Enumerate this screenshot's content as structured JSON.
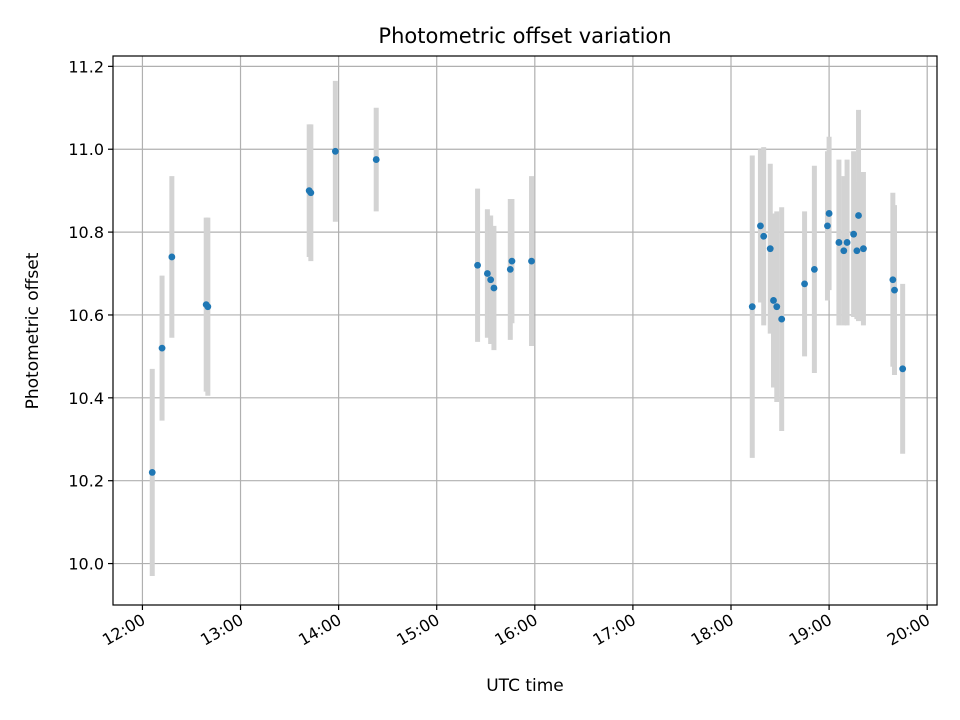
{
  "chart_data": {
    "type": "scatter",
    "title": "Photometric offset variation",
    "xlabel": "UTC time",
    "ylabel": "Photometric offset",
    "xlim": [
      "11:42",
      "20:06"
    ],
    "ylim": [
      9.9,
      11.225
    ],
    "xticks": [
      "12:00",
      "13:00",
      "14:00",
      "15:00",
      "16:00",
      "17:00",
      "18:00",
      "19:00",
      "20:00"
    ],
    "yticks": [
      10.0,
      10.2,
      10.4,
      10.6,
      10.8,
      11.0,
      11.2
    ],
    "grid": true,
    "marker_color": "#1f77b4",
    "errorbar_color": "#d3d3d3",
    "points": [
      {
        "x": "12:06",
        "y": 10.22,
        "err": 0.25
      },
      {
        "x": "12:12",
        "y": 10.52,
        "err": 0.175
      },
      {
        "x": "12:18",
        "y": 10.74,
        "err": 0.195
      },
      {
        "x": "12:39",
        "y": 10.625,
        "err": 0.21
      },
      {
        "x": "12:40",
        "y": 10.62,
        "err": 0.215
      },
      {
        "x": "13:42",
        "y": 10.9,
        "err": 0.16
      },
      {
        "x": "13:43",
        "y": 10.895,
        "err": 0.165
      },
      {
        "x": "13:58",
        "y": 10.995,
        "err": 0.17
      },
      {
        "x": "14:23",
        "y": 10.975,
        "err": 0.125
      },
      {
        "x": "15:25",
        "y": 10.72,
        "err": 0.185
      },
      {
        "x": "15:31",
        "y": 10.7,
        "err": 0.155
      },
      {
        "x": "15:33",
        "y": 10.685,
        "err": 0.155
      },
      {
        "x": "15:35",
        "y": 10.665,
        "err": 0.15
      },
      {
        "x": "15:45",
        "y": 10.71,
        "err": 0.17
      },
      {
        "x": "15:46",
        "y": 10.73,
        "err": 0.15
      },
      {
        "x": "15:58",
        "y": 10.73,
        "err": 0.205
      },
      {
        "x": "18:13",
        "y": 10.62,
        "err": 0.365
      },
      {
        "x": "18:18",
        "y": 10.815,
        "err": 0.185
      },
      {
        "x": "18:20",
        "y": 10.79,
        "err": 0.215
      },
      {
        "x": "18:24",
        "y": 10.76,
        "err": 0.205
      },
      {
        "x": "18:26",
        "y": 10.635,
        "err": 0.21
      },
      {
        "x": "18:28",
        "y": 10.62,
        "err": 0.23
      },
      {
        "x": "18:31",
        "y": 10.59,
        "err": 0.27
      },
      {
        "x": "18:45",
        "y": 10.675,
        "err": 0.175
      },
      {
        "x": "18:51",
        "y": 10.71,
        "err": 0.25
      },
      {
        "x": "18:59",
        "y": 10.815,
        "err": 0.18
      },
      {
        "x": "19:00",
        "y": 10.845,
        "err": 0.185
      },
      {
        "x": "19:06",
        "y": 10.775,
        "err": 0.2
      },
      {
        "x": "19:09",
        "y": 10.755,
        "err": 0.18
      },
      {
        "x": "19:11",
        "y": 10.775,
        "err": 0.2
      },
      {
        "x": "19:15",
        "y": 10.795,
        "err": 0.2
      },
      {
        "x": "19:17",
        "y": 10.755,
        "err": 0.165
      },
      {
        "x": "19:18",
        "y": 10.84,
        "err": 0.255
      },
      {
        "x": "19:21",
        "y": 10.76,
        "err": 0.185
      },
      {
        "x": "19:39",
        "y": 10.685,
        "err": 0.21
      },
      {
        "x": "19:40",
        "y": 10.66,
        "err": 0.205
      },
      {
        "x": "19:45",
        "y": 10.47,
        "err": 0.205
      }
    ]
  }
}
